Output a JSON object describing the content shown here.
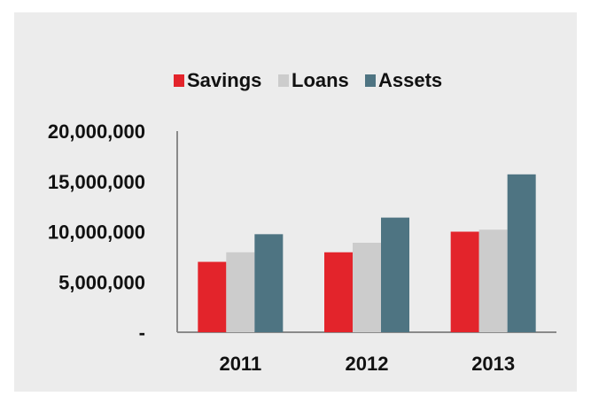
{
  "chart_data": {
    "type": "bar",
    "categories": [
      "2011",
      "2012",
      "2013"
    ],
    "series": [
      {
        "name": "Savings",
        "color": "#e3242b",
        "values": [
          7000000,
          7950000,
          10000000
        ]
      },
      {
        "name": "Loans",
        "color": "#cccccc",
        "values": [
          7950000,
          8900000,
          10200000
        ]
      },
      {
        "name": "Assets",
        "color": "#4e7482",
        "values": [
          9750000,
          11400000,
          15700000
        ]
      }
    ],
    "ylim": [
      0,
      20000000
    ],
    "yticks": [
      {
        "value": 0,
        "label": "-"
      },
      {
        "value": 5000000,
        "label": "5,000,000"
      },
      {
        "value": 10000000,
        "label": "10,000,000"
      },
      {
        "value": 15000000,
        "label": "15,000,000"
      },
      {
        "value": 20000000,
        "label": "20,000,000"
      }
    ],
    "legend_position": "top",
    "grid": false
  }
}
